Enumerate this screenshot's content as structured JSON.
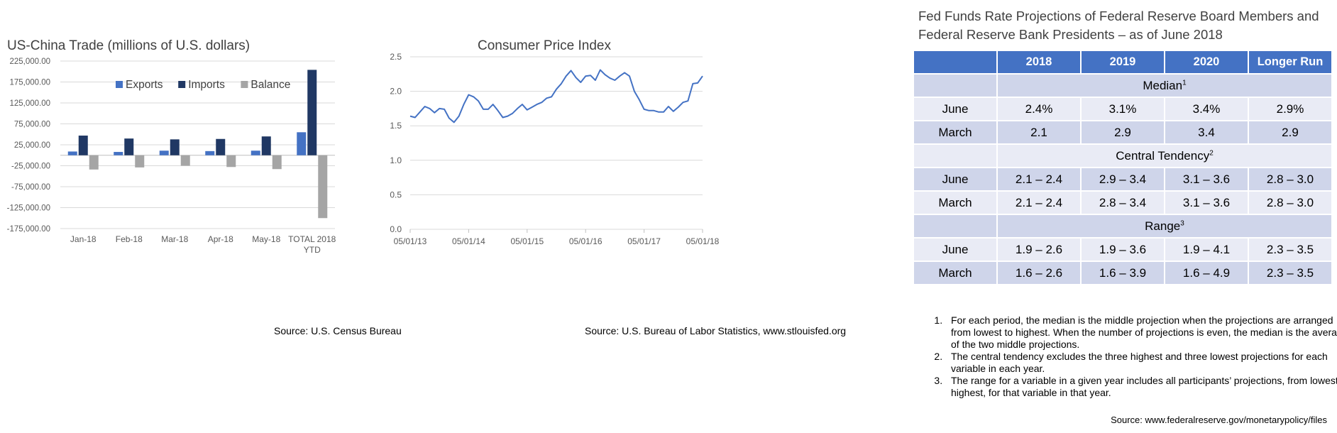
{
  "trade": {
    "title": "US-China Trade (millions of U.S. dollars)",
    "source": "Source: U.S. Census Bureau",
    "chart_data": {
      "type": "bar",
      "categories": [
        "Jan-18",
        "Feb-18",
        "Mar-18",
        "Apr-18",
        "May-18",
        "TOTAL 2018 YTD"
      ],
      "category_lines": [
        [
          "Jan-18"
        ],
        [
          "Feb-18"
        ],
        [
          "Mar-18"
        ],
        [
          "Apr-18"
        ],
        [
          "May-18"
        ],
        [
          "TOTAL 2018",
          "YTD"
        ]
      ],
      "series": [
        {
          "name": "Exports",
          "color": "#4472c4",
          "values": [
            9000,
            8000,
            11000,
            10000,
            11000,
            55000
          ]
        },
        {
          "name": "Imports",
          "color": "#203864",
          "values": [
            47000,
            40000,
            38000,
            39000,
            45000,
            204000
          ]
        },
        {
          "name": "Balance",
          "color": "#a5a5a5",
          "values": [
            -34000,
            -29000,
            -25000,
            -28000,
            -33000,
            -150000
          ]
        }
      ],
      "ylim": [
        -175000,
        225000
      ],
      "yticks": [
        225000,
        175000,
        125000,
        75000,
        25000,
        -25000,
        -75000,
        -125000,
        -175000
      ],
      "ytick_labels": [
        "225,000.00",
        "175,000.00",
        "125,000.00",
        "75,000.00",
        "25,000.00",
        "-25,000.00",
        "-75,000.00",
        "-125,000.00",
        "-175,000.00"
      ],
      "grid": true,
      "legend": "top"
    }
  },
  "cpi": {
    "title": "Consumer Price Index",
    "source": "Source: U.S. Bureau of Labor Statistics, www.stlouisfed.org",
    "chart_data": {
      "type": "line",
      "xticks": [
        "05/01/13",
        "05/01/14",
        "05/01/15",
        "05/01/16",
        "05/01/17",
        "05/01/18"
      ],
      "x_start": "05/01/13",
      "x_end": "05/01/18",
      "ylim": [
        0.0,
        2.5
      ],
      "yticks": [
        0.0,
        0.5,
        1.0,
        1.5,
        2.0,
        2.5
      ],
      "ytick_labels": [
        "0.0",
        "0.5",
        "1.0",
        "1.5",
        "2.0",
        "2.5"
      ],
      "grid": true,
      "series": [
        {
          "color": "#4472c4",
          "values": [
            1.64,
            1.62,
            1.7,
            1.78,
            1.75,
            1.69,
            1.75,
            1.74,
            1.61,
            1.55,
            1.64,
            1.81,
            1.95,
            1.92,
            1.86,
            1.74,
            1.74,
            1.81,
            1.72,
            1.62,
            1.64,
            1.68,
            1.75,
            1.81,
            1.73,
            1.77,
            1.81,
            1.84,
            1.9,
            1.92,
            2.03,
            2.11,
            2.22,
            2.3,
            2.2,
            2.13,
            2.22,
            2.23,
            2.16,
            2.31,
            2.24,
            2.19,
            2.16,
            2.22,
            2.27,
            2.22,
            2.0,
            1.88,
            1.74,
            1.72,
            1.72,
            1.7,
            1.7,
            1.78,
            1.71,
            1.77,
            1.84,
            1.86,
            2.11,
            2.12,
            2.22
          ]
        }
      ]
    }
  },
  "fed": {
    "title": "Fed Funds Rate Projections of Federal Reserve Board Members and Federal Reserve Bank Presidents – as of June 2018",
    "header": [
      "",
      "2018",
      "2019",
      "2020",
      "Longer Run"
    ],
    "sections": [
      {
        "label": "Median",
        "note": "1",
        "rows": [
          {
            "label": "June",
            "values": [
              "2.4%",
              "3.1%",
              "3.4%",
              "2.9%"
            ]
          },
          {
            "label": "March",
            "values": [
              "2.1",
              "2.9",
              "3.4",
              "2.9"
            ]
          }
        ]
      },
      {
        "label": "Central Tendency",
        "note": "2",
        "rows": [
          {
            "label": "June",
            "values": [
              "2.1 – 2.4",
              "2.9 – 3.4",
              "3.1 – 3.6",
              "2.8 – 3.0"
            ]
          },
          {
            "label": "March",
            "values": [
              "2.1 – 2.4",
              "2.8 – 3.4",
              "3.1 – 3.6",
              "2.8 – 3.0"
            ]
          }
        ]
      },
      {
        "label": "Range",
        "note": "3",
        "rows": [
          {
            "label": "June",
            "values": [
              "1.9 – 2.6",
              "1.9 – 3.6",
              "1.9 – 4.1",
              "2.3 – 3.5"
            ]
          },
          {
            "label": "March",
            "values": [
              "1.6 – 2.6",
              "1.6 – 3.9",
              "1.6 – 4.9",
              "2.3 – 3.5"
            ]
          }
        ]
      }
    ],
    "notes": [
      "For each period, the median is the middle projection when the projections are arranged from lowest to highest. When the number of projections is even, the median is the average of the two middle projections.",
      "The central tendency excludes the three highest and three lowest projections for each variable in each year.",
      "The range for a variable in a given year includes all participants’ projections, from lowest to highest, for that variable in that year."
    ],
    "source": "Source: www.federalreserve.gov/monetarypolicy/files"
  }
}
